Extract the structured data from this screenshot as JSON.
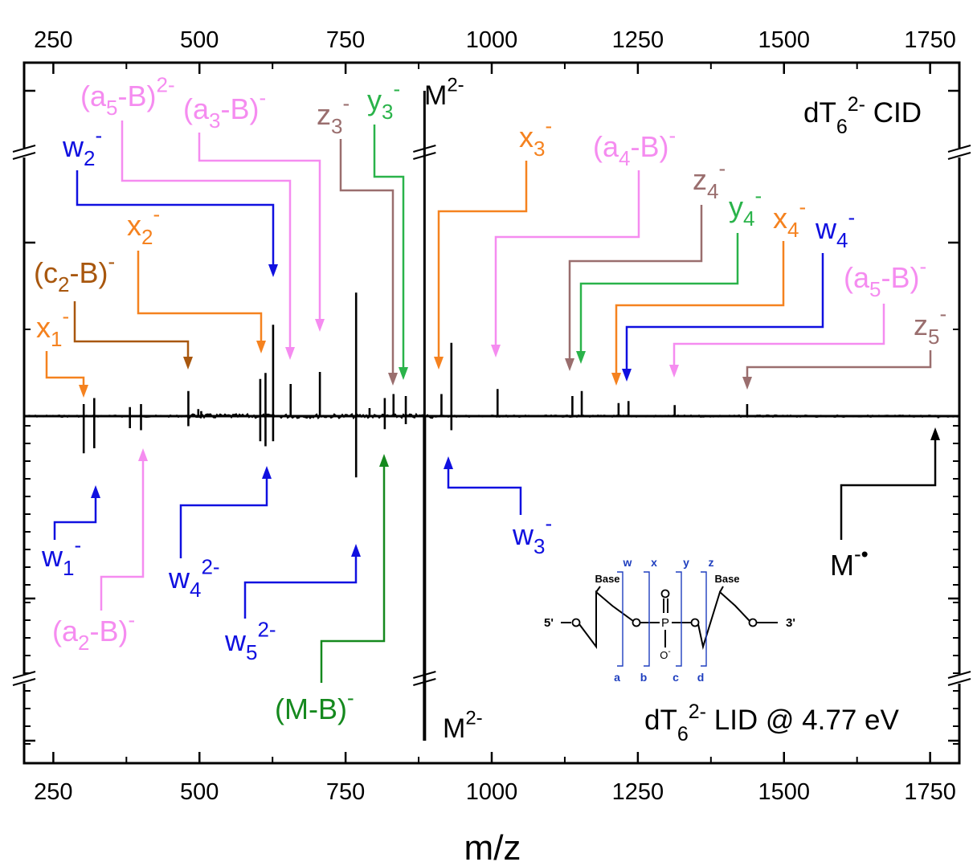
{
  "chart_data": {
    "type": "mirrored-stick-spectrum",
    "xlabel": "m/z",
    "xlim": [
      200,
      1800
    ],
    "xticks": [
      "250",
      "500",
      "750",
      "1000",
      "1250",
      "1500",
      "1750"
    ],
    "xtick_values": [
      250,
      500,
      750,
      1000,
      1250,
      1500,
      1750
    ],
    "top_panel": {
      "title": "dT",
      "title_sub": "6",
      "title_sup": "2-",
      "title_tail": "CID",
      "base_peak": {
        "label": "M",
        "label_sup": "2-",
        "mz": 885
      },
      "peaks": [
        {
          "mz": 302,
          "rel": 0.12
        },
        {
          "mz": 320,
          "rel": 0.18
        },
        {
          "mz": 381,
          "rel": 0.09
        },
        {
          "mz": 400,
          "rel": 0.12
        },
        {
          "mz": 481,
          "rel": 0.25
        },
        {
          "mz": 498,
          "rel": 0.07
        },
        {
          "mz": 503,
          "rel": 0.05
        },
        {
          "mz": 604,
          "rel": 0.37
        },
        {
          "mz": 613,
          "rel": 0.43
        },
        {
          "mz": 626,
          "rel": 0.91
        },
        {
          "mz": 656,
          "rel": 0.32
        },
        {
          "mz": 706,
          "rel": 0.44
        },
        {
          "mz": 768,
          "rel": 1.23
        },
        {
          "mz": 791,
          "rel": 0.08
        },
        {
          "mz": 817,
          "rel": 0.18
        },
        {
          "mz": 832,
          "rel": 0.22
        },
        {
          "mz": 853,
          "rel": 0.2
        },
        {
          "mz": 914,
          "rel": 0.22
        },
        {
          "mz": 931,
          "rel": 0.73
        },
        {
          "mz": 1010,
          "rel": 0.27
        },
        {
          "mz": 1138,
          "rel": 0.2
        },
        {
          "mz": 1154,
          "rel": 0.25
        },
        {
          "mz": 1217,
          "rel": 0.13
        },
        {
          "mz": 1234,
          "rel": 0.15
        },
        {
          "mz": 1313,
          "rel": 0.11
        },
        {
          "mz": 1437,
          "rel": 0.12
        }
      ],
      "annotations": [
        {
          "name": "x1",
          "main": "x",
          "sub": "1",
          "sup": "-",
          "color": "#f5821f",
          "mz": 302
        },
        {
          "name": "c2-B",
          "pre": "(c",
          "sub": "2",
          "post": "-B)",
          "sup": "-",
          "color": "#a8570e",
          "mz": 481
        },
        {
          "name": "x2",
          "main": "x",
          "sub": "2",
          "sup": "-",
          "color": "#f5821f",
          "mz": 604
        },
        {
          "name": "w2",
          "main": "w",
          "sub": "2",
          "sup": "-",
          "color": "#1010e0",
          "mz": 626
        },
        {
          "name": "a5-B-2",
          "pre": "(a",
          "sub": "5",
          "post": "-B)",
          "sup": "2-",
          "color": "#f58cf0",
          "mz": 656
        },
        {
          "name": "a3-B",
          "pre": "(a",
          "sub": "3",
          "post": "-B)",
          "sup": "-",
          "color": "#f58cf0",
          "mz": 706
        },
        {
          "name": "z3",
          "main": "z",
          "sub": "3",
          "sup": "-",
          "color": "#9a6e6e",
          "mz": 832
        },
        {
          "name": "y3",
          "main": "y",
          "sub": "3",
          "sup": "-",
          "color": "#2ab34a",
          "mz": 853
        },
        {
          "name": "x3",
          "main": "x",
          "sub": "3",
          "sup": "-",
          "color": "#f5821f",
          "mz": 914
        },
        {
          "name": "a4-B",
          "pre": "(a",
          "sub": "4",
          "post": "-B)",
          "sup": "-",
          "color": "#f58cf0",
          "mz": 1010
        },
        {
          "name": "z4",
          "main": "z",
          "sub": "4",
          "sup": "-",
          "color": "#9a6e6e",
          "mz": 1138
        },
        {
          "name": "y4",
          "main": "y",
          "sub": "4",
          "sup": "-",
          "color": "#2ab34a",
          "mz": 1154
        },
        {
          "name": "x4",
          "main": "x",
          "sub": "4",
          "sup": "-",
          "color": "#f5821f",
          "mz": 1217
        },
        {
          "name": "w4",
          "main": "w",
          "sub": "4",
          "sup": "-",
          "color": "#1010e0",
          "mz": 1234
        },
        {
          "name": "a5-B",
          "pre": "(a",
          "sub": "5",
          "post": "-B)",
          "sup": "-",
          "color": "#f58cf0",
          "mz": 1313
        },
        {
          "name": "z5",
          "main": "z",
          "sub": "5",
          "sup": "-",
          "color": "#9a6e6e",
          "mz": 1437
        }
      ]
    },
    "bottom_panel": {
      "title": "dT",
      "title_sub": "6",
      "title_sup": "2-",
      "title_tail": "LID @ 4.77 eV",
      "base_peak": {
        "label": "M",
        "label_sup": "2-",
        "mz": 885
      },
      "peaks": [
        {
          "mz": 302,
          "rel": 0.37
        },
        {
          "mz": 320,
          "rel": 0.32
        },
        {
          "mz": 381,
          "rel": 0.12
        },
        {
          "mz": 400,
          "rel": 0.14
        },
        {
          "mz": 481,
          "rel": 0.1
        },
        {
          "mz": 604,
          "rel": 0.25
        },
        {
          "mz": 613,
          "rel": 0.3
        },
        {
          "mz": 626,
          "rel": 0.25
        },
        {
          "mz": 768,
          "rel": 0.61
        },
        {
          "mz": 817,
          "rel": 0.13
        },
        {
          "mz": 853,
          "rel": 0.08
        },
        {
          "mz": 931,
          "rel": 0.14
        },
        {
          "mz": 1764,
          "rel": 0.02
        }
      ],
      "annotations": [
        {
          "name": "w1",
          "main": "w",
          "sub": "1",
          "sup": "-",
          "color": "#1010e0",
          "mz": 320
        },
        {
          "name": "a2-B",
          "pre": "(a",
          "sub": "2",
          "post": "-B)",
          "sup": "-",
          "color": "#f58cf0",
          "mz": 400
        },
        {
          "name": "w4-2",
          "main": "w",
          "sub": "4",
          "sup": "2-",
          "color": "#1010e0",
          "mz": 613
        },
        {
          "name": "w5-2",
          "main": "w",
          "sub": "5",
          "sup": "2-",
          "color": "#1010e0",
          "mz": 768
        },
        {
          "name": "M-B",
          "pre": "(M-B)",
          "sub": "",
          "post": "",
          "sup": "-",
          "color": "#15891e",
          "mz": 817
        },
        {
          "name": "w3",
          "main": "w",
          "sub": "3",
          "sup": "-",
          "color": "#1010e0",
          "mz": 931
        },
        {
          "name": "M-radical",
          "main": "M",
          "sub": "",
          "sup": "-•",
          "color": "#000000",
          "mz": 1764
        }
      ]
    },
    "structure": {
      "five_prime": "5'",
      "three_prime": "3'",
      "base_left": "Base",
      "base_right": "Base",
      "phosphorus": "P",
      "oxygen": "O",
      "oxygen_minus": "O",
      "oxygen_minus_sup": "-",
      "top_cleavage_labels": [
        "w",
        "x",
        "y",
        "z"
      ],
      "bottom_cleavage_labels": [
        "a",
        "b",
        "c",
        "d"
      ],
      "label_color": "#1f3fbf"
    }
  }
}
